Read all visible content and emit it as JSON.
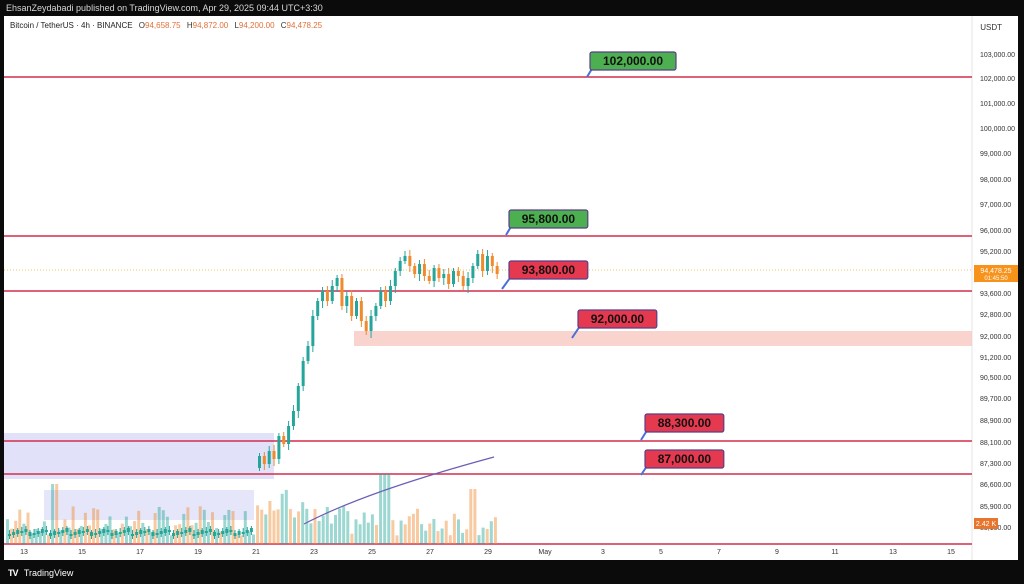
{
  "publish_bar": {
    "text": "EhsanZeydabadi published on TradingView.com, Apr 29, 2025 09:44 UTC+3:30"
  },
  "header": {
    "symbol": "Bitcoin / TetherUS · 4h · BINANCE",
    "open_label": "O",
    "open_value": "94,658.75",
    "high_label": "H",
    "high_value": "94,872.00",
    "low_label": "L",
    "low_value": "94,200.00",
    "close_label": "C",
    "close_value": "94,478.25",
    "currency": "USDT"
  },
  "price_axis": {
    "labels": [
      "103,000.00",
      "102,000.00",
      "101,000.00",
      "100,000.00",
      "99,000.00",
      "98,000.00",
      "97,000.00",
      "96,000.00",
      "95,200.00",
      "94,400.00",
      "93,600.00",
      "92,800.00",
      "92,000.00",
      "91,200.00",
      "90,500.00",
      "89,700.00",
      "88,900.00",
      "88,100.00",
      "87,300.00",
      "86,600.00",
      "85,900.00",
      "85,100.00"
    ],
    "current_price": "94,478.25",
    "countdown": "01:45:50",
    "volume_badge": "2.42 K",
    "current_color": "#f7931a",
    "volume_badge_color": "#e8752d"
  },
  "time_axis": {
    "labels": [
      "13",
      "15",
      "17",
      "19",
      "21",
      "23",
      "25",
      "27",
      "29",
      "May",
      "3",
      "5",
      "7",
      "9",
      "11",
      "13",
      "15"
    ]
  },
  "levels": [
    {
      "label": "102,000.00",
      "color": "#4caf50"
    },
    {
      "label": "95,800.00",
      "color": "#4caf50"
    },
    {
      "label": "93,800.00",
      "color": "#e53950"
    },
    {
      "label": "92,000.00",
      "color": "#e53950"
    },
    {
      "label": "88,300.00",
      "color": "#e53950"
    },
    {
      "label": "87,000.00",
      "color": "#e53950"
    }
  ],
  "colors": {
    "up": "#26a69a",
    "down": "#ef8a2e",
    "level_line": "#d32f4a",
    "zone_red": "#f8c8c0",
    "zone_blue": "#c8c8f5"
  },
  "footer": {
    "logo": "TV",
    "brand": "TradingView"
  }
}
